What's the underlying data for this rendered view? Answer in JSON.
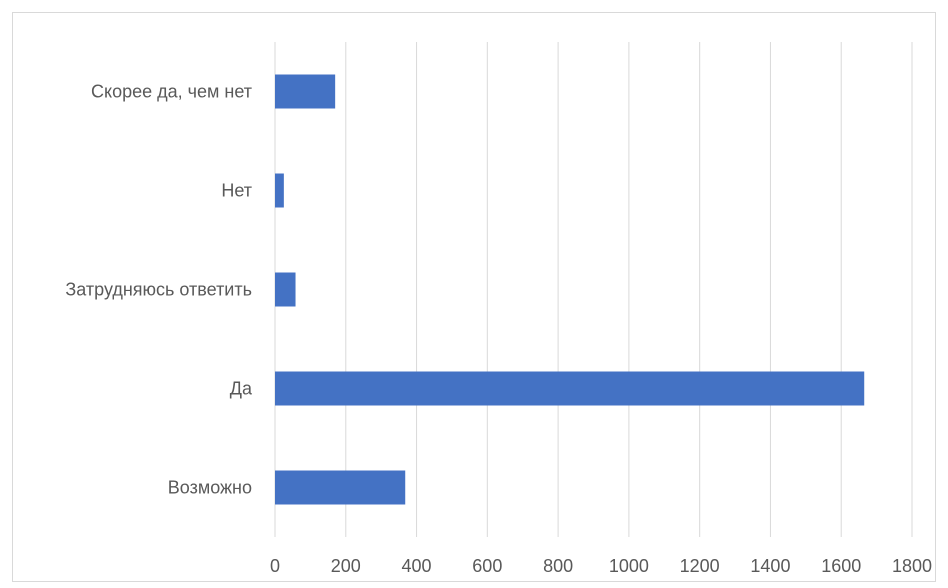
{
  "chart_data": {
    "type": "bar",
    "orientation": "horizontal",
    "categories": [
      "Скорее да, чем нет",
      "Нет",
      "Затрудняюсь ответить",
      "Да",
      "Возможно"
    ],
    "values": [
      170,
      25,
      58,
      1665,
      368
    ],
    "title": "",
    "xlabel": "",
    "ylabel": "",
    "xlim": [
      0,
      1800
    ],
    "x_ticks": [
      0,
      200,
      400,
      600,
      800,
      1000,
      1200,
      1400,
      1600,
      1800
    ],
    "x_tick_labels": [
      "0",
      "200",
      "400",
      "600",
      "800",
      "1000",
      "1200",
      "1400",
      "1600",
      "1800"
    ],
    "grid": "vertical",
    "legend": "none",
    "bar_color": "#4472c4",
    "grid_color": "#d9d9d9"
  }
}
